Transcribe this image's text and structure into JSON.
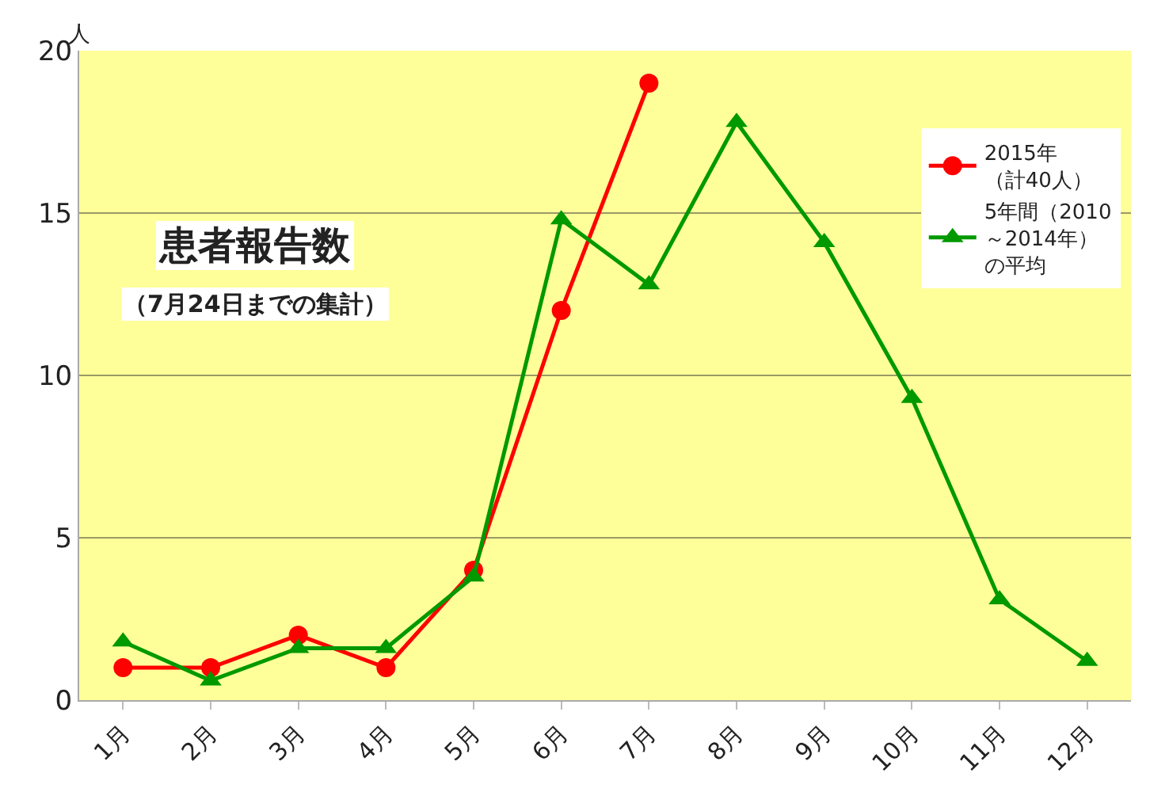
{
  "chart_data": {
    "type": "line",
    "ylabel": "人",
    "categories": [
      "1月",
      "2月",
      "3月",
      "4月",
      "5月",
      "6月",
      "7月",
      "8月",
      "9月",
      "10月",
      "11月",
      "12月"
    ],
    "series": [
      {
        "name": "2015年（計40人）",
        "color": "#ff0000",
        "marker": "circle",
        "values": [
          1,
          1,
          2,
          1,
          4,
          12,
          19,
          null,
          null,
          null,
          null,
          null
        ]
      },
      {
        "name": "5年間（2010～2014年）の平均",
        "color": "#009900",
        "marker": "triangle",
        "values": [
          1.8,
          0.6,
          1.6,
          1.6,
          3.8,
          14.8,
          12.8,
          17.8,
          14.1,
          9.3,
          3.1,
          1.2
        ]
      }
    ],
    "ylim": [
      0,
      20
    ],
    "yticks": [
      0,
      5,
      10,
      15,
      20
    ],
    "grid": "y",
    "legend": "top right",
    "annotations": [
      "患者報告数",
      "（7月24日までの集計）"
    ]
  }
}
